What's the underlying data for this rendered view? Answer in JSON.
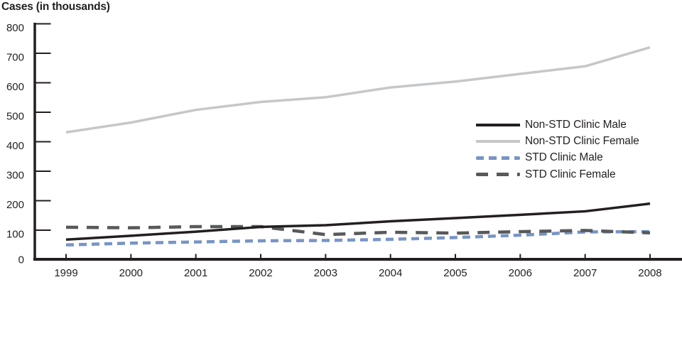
{
  "chart_data": {
    "type": "line",
    "title": "Cases (in thousands)",
    "ylabel": "Cases (in thousands)",
    "xlabel": "",
    "x": [
      1999,
      2000,
      2001,
      2002,
      2003,
      2004,
      2005,
      2006,
      2007,
      2008
    ],
    "ylim": [
      0,
      800
    ],
    "yticks": [
      0,
      100,
      200,
      300,
      400,
      500,
      600,
      700,
      800
    ],
    "grid": false,
    "legend_position": "center-right",
    "axis_color": "#231f20",
    "series": [
      {
        "name": "Non-STD Clinic Male",
        "color": "#231f20",
        "line_style": "solid",
        "dash": null,
        "values": [
          68,
          81,
          95,
          111,
          117,
          130,
          141,
          152,
          164,
          190
        ]
      },
      {
        "name": "Non-STD Clinic Female",
        "color": "#c6c7c9",
        "line_style": "solid",
        "dash": null,
        "values": [
          432,
          465,
          508,
          535,
          551,
          584,
          604,
          630,
          656,
          720
        ]
      },
      {
        "name": "STD Clinic Male",
        "color": "#7795c5",
        "line_style": "dashed",
        "dash": [
          11,
          7
        ],
        "values": [
          50,
          56,
          60,
          64,
          65,
          69,
          75,
          83,
          94,
          95
        ]
      },
      {
        "name": "STD Clinic Female",
        "color": "#58595b",
        "line_style": "dashed",
        "dash": [
          17,
          12
        ],
        "values": [
          110,
          108,
          112,
          112,
          85,
          93,
          90,
          95,
          99,
          91
        ]
      }
    ]
  }
}
